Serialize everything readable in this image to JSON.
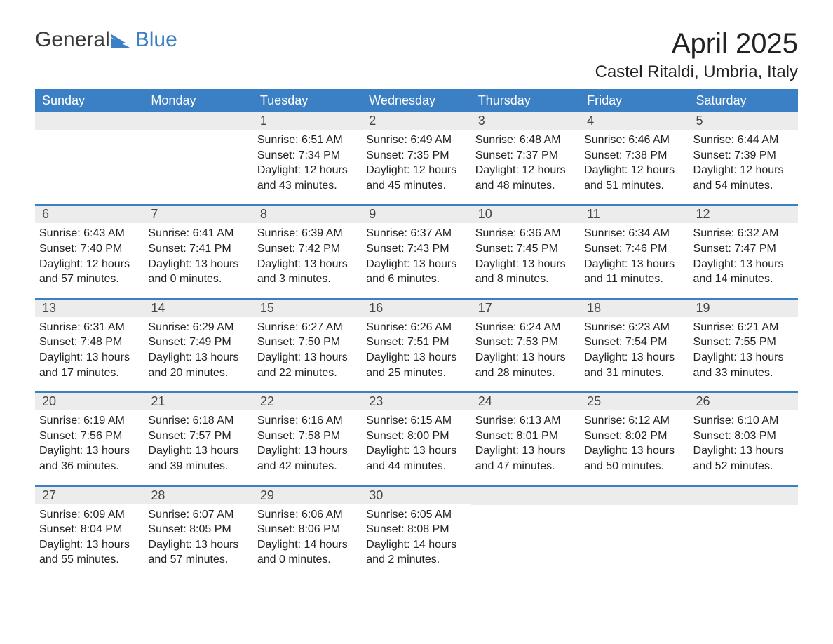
{
  "logo": {
    "general_text": "General",
    "blue_text": "Blue",
    "icon_fill": "#3b7fc4"
  },
  "title": "April 2025",
  "location": "Castel Ritaldi, Umbria, Italy",
  "colors": {
    "header_bg": "#3b7fc4",
    "header_text": "#ffffff",
    "daynum_bg": "#ececec",
    "text": "#222222",
    "week_border": "#3b7fc4"
  },
  "day_headers": [
    "Sunday",
    "Monday",
    "Tuesday",
    "Wednesday",
    "Thursday",
    "Friday",
    "Saturday"
  ],
  "weeks": [
    [
      {
        "num": "",
        "sunrise": "",
        "sunset": "",
        "daylight": ""
      },
      {
        "num": "",
        "sunrise": "",
        "sunset": "",
        "daylight": ""
      },
      {
        "num": "1",
        "sunrise": "Sunrise: 6:51 AM",
        "sunset": "Sunset: 7:34 PM",
        "daylight": "Daylight: 12 hours and 43 minutes."
      },
      {
        "num": "2",
        "sunrise": "Sunrise: 6:49 AM",
        "sunset": "Sunset: 7:35 PM",
        "daylight": "Daylight: 12 hours and 45 minutes."
      },
      {
        "num": "3",
        "sunrise": "Sunrise: 6:48 AM",
        "sunset": "Sunset: 7:37 PM",
        "daylight": "Daylight: 12 hours and 48 minutes."
      },
      {
        "num": "4",
        "sunrise": "Sunrise: 6:46 AM",
        "sunset": "Sunset: 7:38 PM",
        "daylight": "Daylight: 12 hours and 51 minutes."
      },
      {
        "num": "5",
        "sunrise": "Sunrise: 6:44 AM",
        "sunset": "Sunset: 7:39 PM",
        "daylight": "Daylight: 12 hours and 54 minutes."
      }
    ],
    [
      {
        "num": "6",
        "sunrise": "Sunrise: 6:43 AM",
        "sunset": "Sunset: 7:40 PM",
        "daylight": "Daylight: 12 hours and 57 minutes."
      },
      {
        "num": "7",
        "sunrise": "Sunrise: 6:41 AM",
        "sunset": "Sunset: 7:41 PM",
        "daylight": "Daylight: 13 hours and 0 minutes."
      },
      {
        "num": "8",
        "sunrise": "Sunrise: 6:39 AM",
        "sunset": "Sunset: 7:42 PM",
        "daylight": "Daylight: 13 hours and 3 minutes."
      },
      {
        "num": "9",
        "sunrise": "Sunrise: 6:37 AM",
        "sunset": "Sunset: 7:43 PM",
        "daylight": "Daylight: 13 hours and 6 minutes."
      },
      {
        "num": "10",
        "sunrise": "Sunrise: 6:36 AM",
        "sunset": "Sunset: 7:45 PM",
        "daylight": "Daylight: 13 hours and 8 minutes."
      },
      {
        "num": "11",
        "sunrise": "Sunrise: 6:34 AM",
        "sunset": "Sunset: 7:46 PM",
        "daylight": "Daylight: 13 hours and 11 minutes."
      },
      {
        "num": "12",
        "sunrise": "Sunrise: 6:32 AM",
        "sunset": "Sunset: 7:47 PM",
        "daylight": "Daylight: 13 hours and 14 minutes."
      }
    ],
    [
      {
        "num": "13",
        "sunrise": "Sunrise: 6:31 AM",
        "sunset": "Sunset: 7:48 PM",
        "daylight": "Daylight: 13 hours and 17 minutes."
      },
      {
        "num": "14",
        "sunrise": "Sunrise: 6:29 AM",
        "sunset": "Sunset: 7:49 PM",
        "daylight": "Daylight: 13 hours and 20 minutes."
      },
      {
        "num": "15",
        "sunrise": "Sunrise: 6:27 AM",
        "sunset": "Sunset: 7:50 PM",
        "daylight": "Daylight: 13 hours and 22 minutes."
      },
      {
        "num": "16",
        "sunrise": "Sunrise: 6:26 AM",
        "sunset": "Sunset: 7:51 PM",
        "daylight": "Daylight: 13 hours and 25 minutes."
      },
      {
        "num": "17",
        "sunrise": "Sunrise: 6:24 AM",
        "sunset": "Sunset: 7:53 PM",
        "daylight": "Daylight: 13 hours and 28 minutes."
      },
      {
        "num": "18",
        "sunrise": "Sunrise: 6:23 AM",
        "sunset": "Sunset: 7:54 PM",
        "daylight": "Daylight: 13 hours and 31 minutes."
      },
      {
        "num": "19",
        "sunrise": "Sunrise: 6:21 AM",
        "sunset": "Sunset: 7:55 PM",
        "daylight": "Daylight: 13 hours and 33 minutes."
      }
    ],
    [
      {
        "num": "20",
        "sunrise": "Sunrise: 6:19 AM",
        "sunset": "Sunset: 7:56 PM",
        "daylight": "Daylight: 13 hours and 36 minutes."
      },
      {
        "num": "21",
        "sunrise": "Sunrise: 6:18 AM",
        "sunset": "Sunset: 7:57 PM",
        "daylight": "Daylight: 13 hours and 39 minutes."
      },
      {
        "num": "22",
        "sunrise": "Sunrise: 6:16 AM",
        "sunset": "Sunset: 7:58 PM",
        "daylight": "Daylight: 13 hours and 42 minutes."
      },
      {
        "num": "23",
        "sunrise": "Sunrise: 6:15 AM",
        "sunset": "Sunset: 8:00 PM",
        "daylight": "Daylight: 13 hours and 44 minutes."
      },
      {
        "num": "24",
        "sunrise": "Sunrise: 6:13 AM",
        "sunset": "Sunset: 8:01 PM",
        "daylight": "Daylight: 13 hours and 47 minutes."
      },
      {
        "num": "25",
        "sunrise": "Sunrise: 6:12 AM",
        "sunset": "Sunset: 8:02 PM",
        "daylight": "Daylight: 13 hours and 50 minutes."
      },
      {
        "num": "26",
        "sunrise": "Sunrise: 6:10 AM",
        "sunset": "Sunset: 8:03 PM",
        "daylight": "Daylight: 13 hours and 52 minutes."
      }
    ],
    [
      {
        "num": "27",
        "sunrise": "Sunrise: 6:09 AM",
        "sunset": "Sunset: 8:04 PM",
        "daylight": "Daylight: 13 hours and 55 minutes."
      },
      {
        "num": "28",
        "sunrise": "Sunrise: 6:07 AM",
        "sunset": "Sunset: 8:05 PM",
        "daylight": "Daylight: 13 hours and 57 minutes."
      },
      {
        "num": "29",
        "sunrise": "Sunrise: 6:06 AM",
        "sunset": "Sunset: 8:06 PM",
        "daylight": "Daylight: 14 hours and 0 minutes."
      },
      {
        "num": "30",
        "sunrise": "Sunrise: 6:05 AM",
        "sunset": "Sunset: 8:08 PM",
        "daylight": "Daylight: 14 hours and 2 minutes."
      },
      {
        "num": "",
        "sunrise": "",
        "sunset": "",
        "daylight": ""
      },
      {
        "num": "",
        "sunrise": "",
        "sunset": "",
        "daylight": ""
      },
      {
        "num": "",
        "sunrise": "",
        "sunset": "",
        "daylight": ""
      }
    ]
  ]
}
